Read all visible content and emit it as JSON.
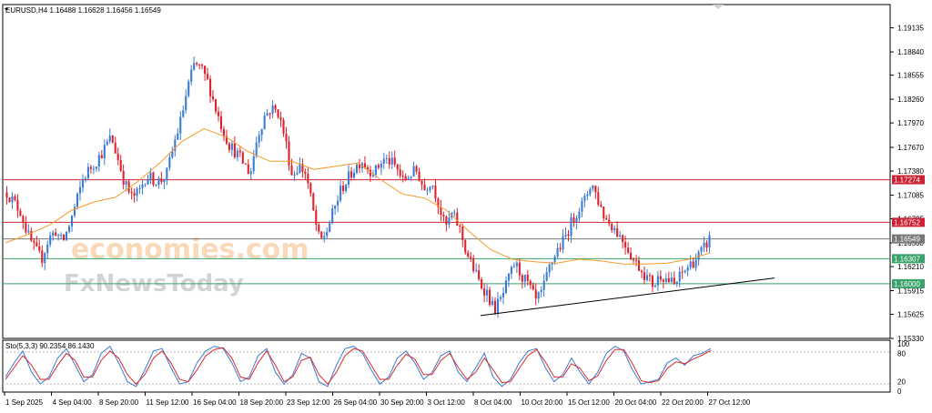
{
  "chart_data": {
    "type": "candlestick",
    "symbol_header": "EURUSD,H4  1.16488 1.16628 1.16456 1.16549",
    "y_range": [
      1.1533,
      1.1942
    ],
    "y_ticks": [
      "1.19135",
      "1.18840",
      "1.18555",
      "1.18260",
      "1.17970",
      "1.17670",
      "1.17380",
      "1.17085",
      "1.16795",
      "1.16500",
      "1.16210",
      "1.15915",
      "1.15625",
      "1.15330"
    ],
    "x_labels": [
      "1 Sep 2025",
      "4 Sep 04:00",
      "8 Sep 20:00",
      "11 Sep 12:00",
      "16 Sep 04:00",
      "18 Sep 20:00",
      "23 Sep 12:00",
      "26 Sep 04:00",
      "30 Sep 20:00",
      "3 Oct 12:00",
      "8 Oct 04:00",
      "10 Oct 20:00",
      "15 Oct 12:00",
      "20 Oct 04:00",
      "22 Oct 20:00",
      "27 Oct 12:00"
    ],
    "close_path": [
      1.1712,
      1.17,
      1.1688,
      1.166,
      1.1642,
      1.163,
      1.1655,
      1.1665,
      1.165,
      1.1672,
      1.17,
      1.173,
      1.1742,
      1.1752,
      1.1765,
      1.178,
      1.1752,
      1.1722,
      1.1705,
      1.1712,
      1.1732,
      1.1728,
      1.1725,
      1.1735,
      1.177,
      1.18,
      1.184,
      1.187,
      1.1862,
      1.1845,
      1.1815,
      1.179,
      1.177,
      1.176,
      1.1748,
      1.1735,
      1.178,
      1.1805,
      1.1815,
      1.181,
      1.1778,
      1.1732,
      1.1745,
      1.1735,
      1.169,
      1.165,
      1.1665,
      1.169,
      1.1715,
      1.1728,
      1.1742,
      1.1752,
      1.174,
      1.1738,
      1.1752,
      1.175,
      1.1742,
      1.1725,
      1.1735,
      1.1738,
      1.1715,
      1.1728,
      1.17,
      1.1668,
      1.1685,
      1.167,
      1.164,
      1.162,
      1.16,
      1.159,
      1.1568,
      1.158,
      1.1602,
      1.1625,
      1.161,
      1.1598,
      1.1578,
      1.159,
      1.162,
      1.164,
      1.1652,
      1.1672,
      1.169,
      1.17,
      1.1725,
      1.1702,
      1.168,
      1.1672,
      1.166,
      1.1648,
      1.163,
      1.162,
      1.1608,
      1.1598,
      1.1612,
      1.1605,
      1.1598,
      1.1612,
      1.1622,
      1.163,
      1.164,
      1.1655
    ],
    "moving_average_path": [
      1.165,
      1.166,
      1.1672,
      1.169,
      1.17,
      1.1706,
      1.1725,
      1.1748,
      1.1774,
      1.179,
      1.178,
      1.1762,
      1.175,
      1.175,
      1.174,
      1.1744,
      1.1748,
      1.1728,
      1.171,
      1.1705,
      1.169,
      1.1665,
      1.1642,
      1.163,
      1.1627,
      1.1625,
      1.163,
      1.1628,
      1.1624,
      1.1624,
      1.1625,
      1.163,
      1.1638
    ],
    "horizontal_levels": [
      {
        "value": 1.17274,
        "label": "1.17274",
        "color": "#cc2233"
      },
      {
        "value": 1.16752,
        "label": "1.16752",
        "color": "#cc2233"
      },
      {
        "value": 1.16549,
        "label": "1.16549",
        "color": "#777777"
      },
      {
        "value": 1.16307,
        "label": "1.16307",
        "color": "#3aa36a"
      },
      {
        "value": 1.16,
        "label": "1.16000",
        "color": "#3aa36a"
      }
    ],
    "trendline": {
      "from": [
        "8 Oct 04:00",
        1.1561
      ],
      "to": [
        "28 Oct",
        1.1607
      ],
      "color": "#000000"
    },
    "oscillator": {
      "label": "Sto(5,3,3) 90.2354 86.1430",
      "y_range": [
        0,
        100
      ],
      "ticks": [
        "100",
        "80",
        "20",
        "0"
      ],
      "main_path": [
        30,
        60,
        85,
        40,
        15,
        30,
        70,
        90,
        55,
        20,
        35,
        80,
        95,
        60,
        20,
        10,
        45,
        85,
        90,
        50,
        15,
        20,
        60,
        85,
        95,
        90,
        60,
        20,
        30,
        75,
        90,
        40,
        15,
        35,
        80,
        70,
        20,
        10,
        55,
        90,
        95,
        80,
        45,
        15,
        30,
        70,
        85,
        60,
        25,
        40,
        75,
        85,
        40,
        20,
        50,
        80,
        30,
        10,
        25,
        60,
        85,
        90,
        50,
        20,
        35,
        70,
        40,
        15,
        40,
        80,
        95,
        85,
        45,
        15,
        20,
        25,
        60,
        70,
        55,
        75,
        80,
        90
      ],
      "signal_path": [
        25,
        50,
        75,
        55,
        25,
        25,
        55,
        80,
        65,
        30,
        30,
        65,
        85,
        70,
        35,
        15,
        35,
        70,
        85,
        60,
        25,
        20,
        45,
        75,
        88,
        92,
        70,
        30,
        25,
        60,
        85,
        55,
        20,
        30,
        65,
        72,
        35,
        15,
        40,
        75,
        90,
        85,
        55,
        25,
        25,
        55,
        78,
        68,
        35,
        35,
        65,
        80,
        50,
        25,
        40,
        70,
        45,
        18,
        20,
        48,
        75,
        88,
        62,
        30,
        30,
        58,
        48,
        22,
        32,
        65,
        88,
        88,
        58,
        22,
        18,
        22,
        48,
        62,
        58,
        68,
        76,
        86
      ],
      "colors": {
        "main": "#3a7bd5",
        "signal": "#d92b2b"
      }
    },
    "watermark": {
      "line1": "economies.com",
      "line2": "FxNewsToday"
    },
    "colors": {
      "bull": "#3a7bd5",
      "bear": "#e0202a",
      "ma": "#f59a2a"
    }
  }
}
